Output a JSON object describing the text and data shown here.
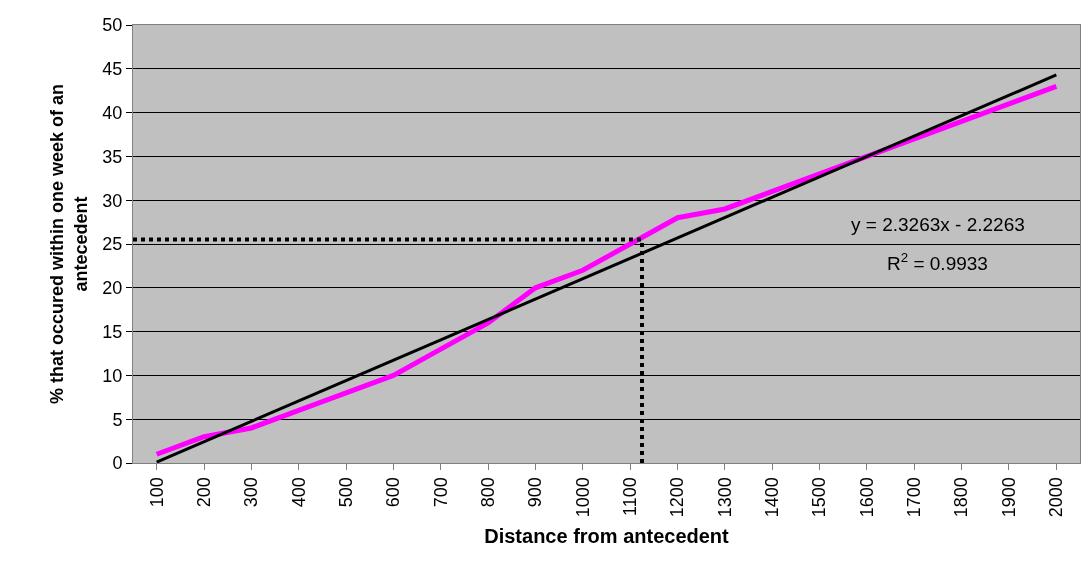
{
  "chart_data": {
    "type": "line",
    "xlabel": "Distance from antecedent",
    "ylabel": "% that occured within one week of an antecedent",
    "x": [
      100,
      200,
      300,
      400,
      500,
      600,
      700,
      800,
      900,
      1000,
      1100,
      1200,
      1300,
      1400,
      1500,
      1600,
      1700,
      1800,
      1900,
      2000
    ],
    "series": [
      {
        "color": "#ff00ff",
        "values": [
          1,
          3,
          4,
          6,
          8,
          10,
          13,
          16,
          20,
          22,
          25,
          28,
          29,
          31,
          33,
          35,
          37,
          39,
          41,
          43
        ]
      },
      {
        "type": "line",
        "color": "#000000",
        "x": [
          100,
          2000
        ],
        "values": [
          0.1,
          44.3
        ]
      }
    ],
    "xlim": [
      50,
      2050
    ],
    "xticks": [
      100,
      200,
      300,
      400,
      500,
      600,
      700,
      800,
      900,
      1000,
      1100,
      1200,
      1300,
      1400,
      1500,
      1600,
      1700,
      1800,
      1900,
      2000
    ],
    "ylim": [
      0,
      50
    ],
    "yticks": [
      0,
      5,
      10,
      15,
      20,
      25,
      30,
      35,
      40,
      45,
      50
    ],
    "ref_lines": [
      {
        "axis": "y",
        "value": 25.5,
        "color": "#000000",
        "line_style": "dotted"
      },
      {
        "axis": "x",
        "value": 1125,
        "color": "#000000",
        "line_style": "dotted"
      }
    ],
    "annotations": [
      "y = 2.3263x - 2.2263",
      "R$^{2}$ = 0.9933"
    ],
    "grid": "y",
    "marker": "none",
    "line_style": "solid"
  }
}
